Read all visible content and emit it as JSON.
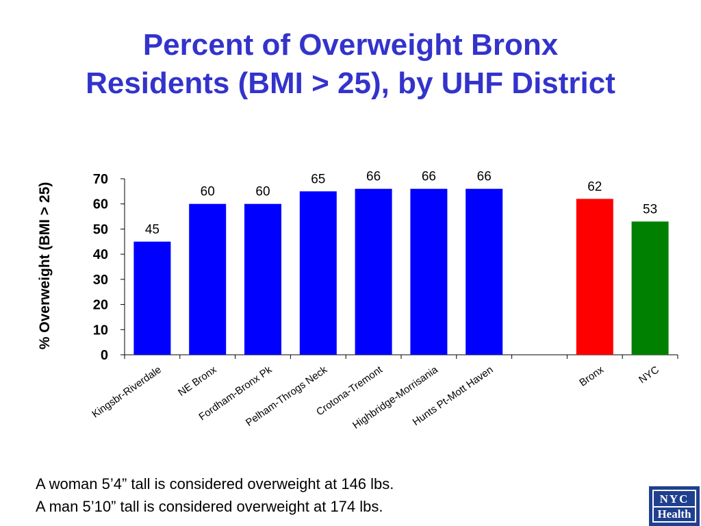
{
  "title_line1": "Percent of Overweight Bronx",
  "title_line2": "Residents (BMI > 25), by UHF District",
  "notes": [
    "A woman 5’4” tall is considered overweight at 146 lbs.",
    "A man 5’10” tall is considered overweight at 174 lbs."
  ],
  "logo": {
    "line1": "NYC",
    "line2": "Health"
  },
  "colors": {
    "title": "#3333cc",
    "district": "#0000ff",
    "bronx": "#ff0000",
    "nyc": "#008000"
  },
  "chart_data": {
    "type": "bar",
    "title": "Percent of Overweight Bronx Residents (BMI > 25), by UHF District",
    "ylabel": "% Overweight (BMI > 25)",
    "xlabel": "",
    "ylim": [
      0,
      70
    ],
    "yticks": [
      0,
      10,
      20,
      30,
      40,
      50,
      60,
      70
    ],
    "grid": false,
    "legend": "none",
    "categories": [
      "Kingsbr-Riverdale",
      "NE Bronx",
      "Fordham-Bronx Pk",
      "Pelham-Throgs Neck",
      "Crotona-Tremont",
      "Highbridge-Morrisania",
      "Hunts Pt-Mott Haven",
      "",
      "Bronx",
      "NYC"
    ],
    "values": [
      45,
      60,
      60,
      65,
      66,
      66,
      66,
      null,
      62,
      53
    ],
    "value_labels": [
      "45",
      "60",
      "60",
      "65",
      "66",
      "66",
      "66",
      "",
      "62",
      "53"
    ],
    "bar_colors": [
      "#0000ff",
      "#0000ff",
      "#0000ff",
      "#0000ff",
      "#0000ff",
      "#0000ff",
      "#0000ff",
      "",
      "#ff0000",
      "#008000"
    ]
  }
}
